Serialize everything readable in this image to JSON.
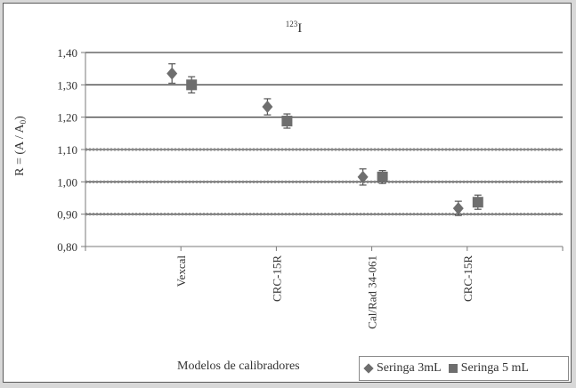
{
  "chart_data": {
    "type": "scatter",
    "title": "123I",
    "title_sup": "123",
    "title_main": "I",
    "xlabel": "Modelos de calibradores",
    "ylabel": "R = (A / A0)",
    "ylabel_main": "R = (A / A",
    "ylabel_sub": "0",
    "ylabel_close": ")",
    "ylim": [
      0.8,
      1.4
    ],
    "yticks": [
      "0,80",
      "0,90",
      "1,00",
      "1,10",
      "1,20",
      "1,30",
      "1,40"
    ],
    "ytick_values": [
      0.8,
      0.9,
      1.0,
      1.1,
      1.2,
      1.3,
      1.4
    ],
    "categories": [
      "Vexcal",
      "CRC-15R",
      "Cal/Rad 34-061",
      "CRC-15R"
    ],
    "grid": "horizontal",
    "reference_lines": [
      0.9,
      1.0,
      1.1
    ],
    "legend_position": "bottom-right",
    "series": [
      {
        "name": "Seringa 3mL",
        "marker": "diamond",
        "values": [
          1.335,
          1.232,
          1.015,
          0.918
        ],
        "errors": [
          0.03,
          0.025,
          0.025,
          0.022
        ]
      },
      {
        "name": "Seringa 5 mL",
        "marker": "square",
        "values": [
          1.3,
          1.188,
          1.015,
          0.937
        ],
        "errors": [
          0.025,
          0.022,
          0.02,
          0.022
        ]
      }
    ]
  },
  "colors": {
    "marker": "#6e6e6e",
    "grid": "#4a4a4a",
    "axis": "#7a7a7a"
  }
}
